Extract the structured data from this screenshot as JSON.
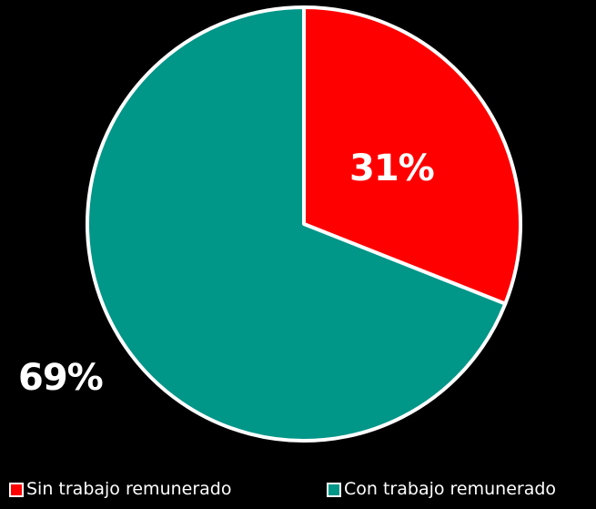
{
  "chart_data": {
    "type": "pie",
    "title": "",
    "series": [
      {
        "name": "",
        "values": [
          31,
          69
        ]
      }
    ],
    "categories": [
      "Sin trabajo remunerado",
      "Con trabajo remunerado"
    ],
    "slices": [
      {
        "label": "Sin trabajo remunerado",
        "value": 31,
        "value_label": "31%",
        "color": "#ff0000"
      },
      {
        "label": "Con trabajo remunerado",
        "value": 69,
        "value_label": "69%",
        "color": "#009688"
      }
    ],
    "legend": {
      "position": "bottom",
      "items": [
        "Sin trabajo remunerado",
        "Con trabajo remunerado"
      ]
    },
    "start_angle": "top (12 o'clock)",
    "direction": "clockwise",
    "border_color": "#ffffff",
    "background": "#000000"
  }
}
